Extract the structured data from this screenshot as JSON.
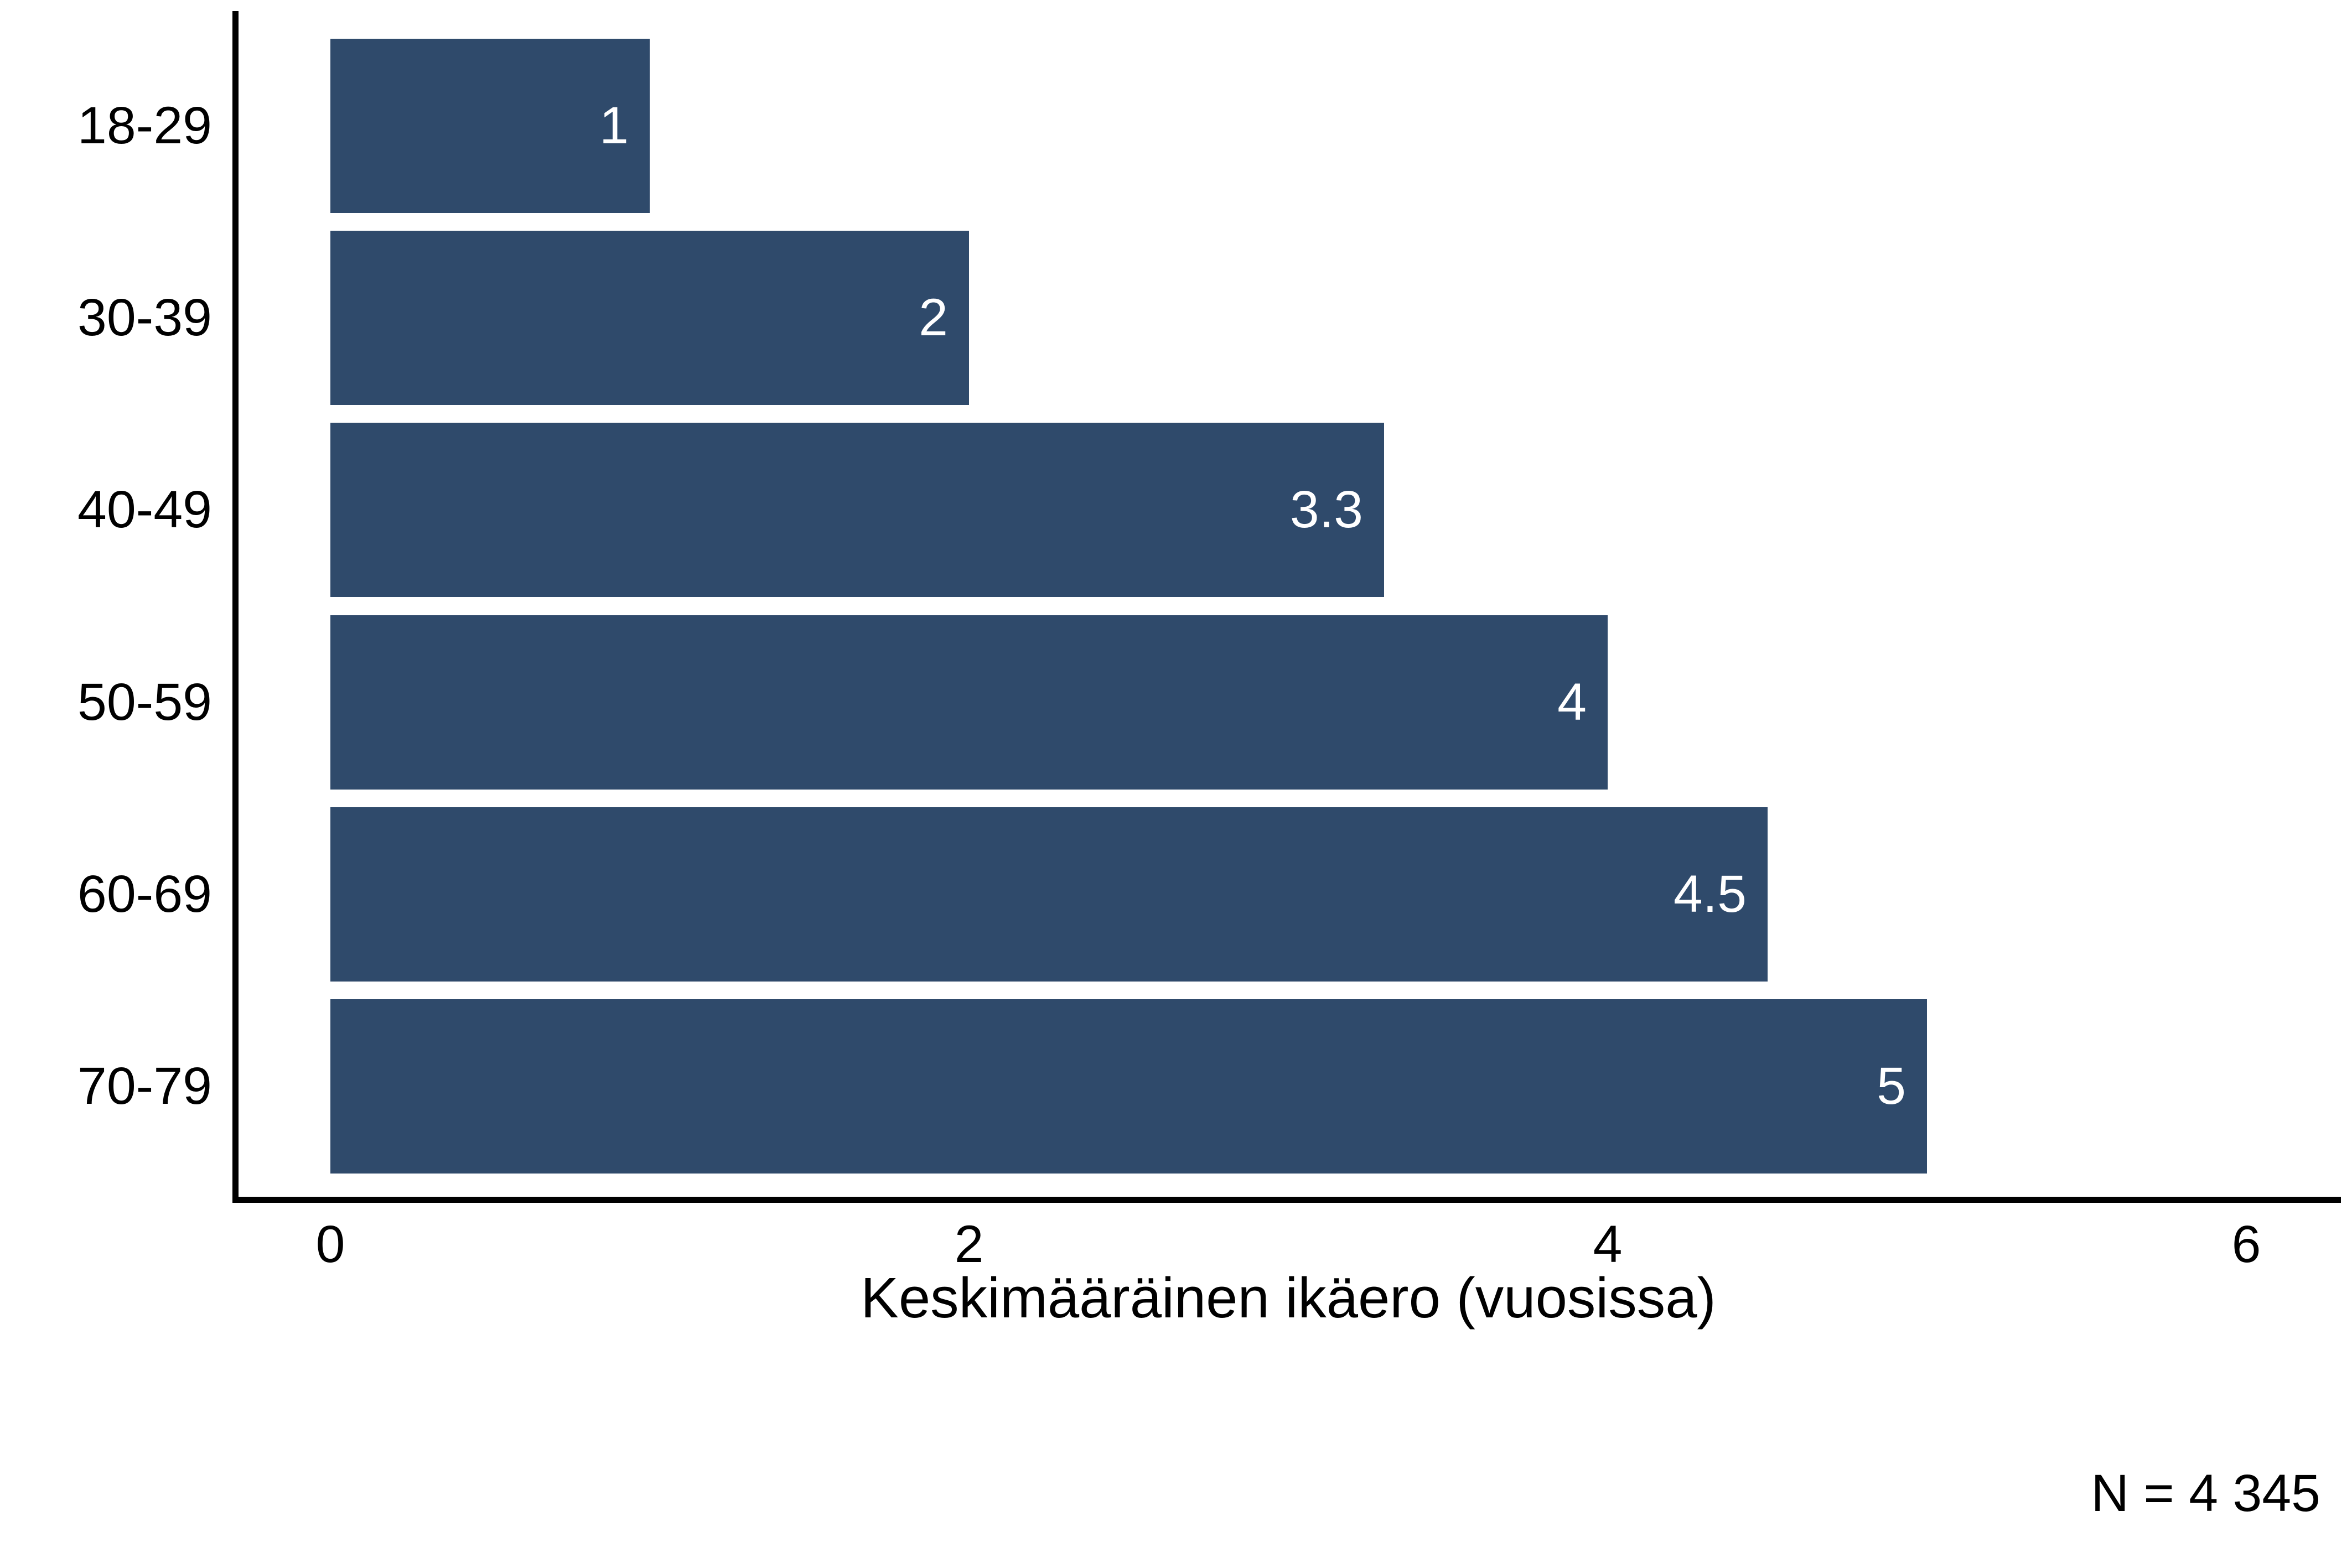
{
  "chart_data": {
    "type": "bar",
    "orientation": "horizontal",
    "title": "",
    "xlabel": "Keskimääräinen ikäero (vuosissa)",
    "ylabel": "",
    "categories": [
      "18-29",
      "30-39",
      "40-49",
      "50-59",
      "60-69",
      "70-79"
    ],
    "values": [
      1,
      2,
      3.3,
      4,
      4.5,
      5
    ],
    "value_labels": [
      "1",
      "2",
      "3.3",
      "4",
      "4.5",
      "5"
    ],
    "x_ticks": [
      0,
      2,
      4,
      6
    ],
    "xlim": [
      0,
      6.3
    ],
    "grid": false,
    "legend_position": "none",
    "bar_color": "#2F4A6B",
    "value_label_color": "#FFFFFF",
    "axis_color": "#000000",
    "annotation": "N = 4 345"
  }
}
